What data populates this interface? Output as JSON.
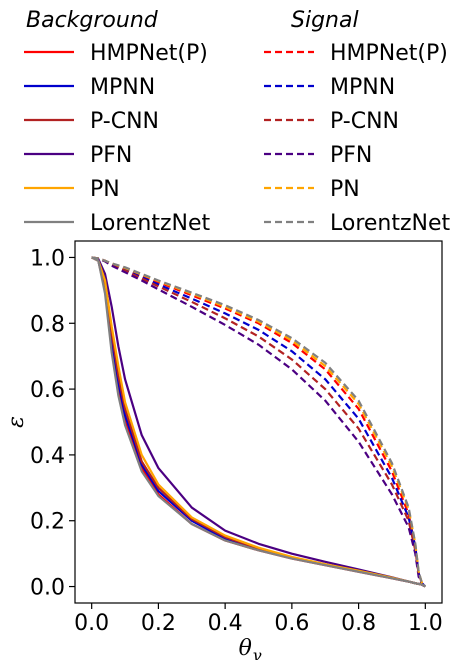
{
  "chart_data": {
    "type": "line",
    "xlabel": "θ",
    "xlabel_sub": "γ",
    "ylabel": "ε",
    "xlim": [
      -0.05,
      1.05
    ],
    "ylim": [
      -0.05,
      1.05
    ],
    "xticks": [
      0.0,
      0.2,
      0.4,
      0.6,
      0.8,
      1.0
    ],
    "yticks": [
      0.0,
      0.2,
      0.4,
      0.6,
      0.8,
      1.0
    ],
    "xtick_labels": [
      "0.0",
      "0.2",
      "0.4",
      "0.6",
      "0.8",
      "1.0"
    ],
    "ytick_labels": [
      "0.0",
      "0.2",
      "0.4",
      "0.6",
      "0.8",
      "1.0"
    ],
    "grid": false,
    "legend_placement": "top, above plot, two columns",
    "legend_groups": [
      {
        "title": "Background",
        "linestyle": "solid"
      },
      {
        "title": "Signal",
        "linestyle": "dashed"
      }
    ],
    "x": [
      0.0,
      0.02,
      0.04,
      0.06,
      0.08,
      0.1,
      0.15,
      0.2,
      0.3,
      0.4,
      0.5,
      0.6,
      0.7,
      0.8,
      0.9,
      0.95,
      0.97,
      0.98,
      0.99,
      1.0
    ],
    "series": [
      {
        "name": "HMPNet(P)",
        "color": "#ff0000",
        "background": [
          1.0,
          0.99,
          0.9,
          0.73,
          0.6,
          0.5,
          0.36,
          0.28,
          0.19,
          0.14,
          0.11,
          0.085,
          0.065,
          0.045,
          0.025,
          0.015,
          0.01,
          0.008,
          0.006,
          0.0
        ],
        "signal": [
          1.0,
          0.997,
          0.99,
          0.98,
          0.973,
          0.965,
          0.945,
          0.925,
          0.885,
          0.845,
          0.8,
          0.74,
          0.66,
          0.54,
          0.35,
          0.22,
          0.12,
          0.04,
          0.01,
          0.0
        ]
      },
      {
        "name": "MPNN",
        "color": "#0000cc",
        "background": [
          1.0,
          0.99,
          0.91,
          0.75,
          0.62,
          0.52,
          0.37,
          0.29,
          0.2,
          0.145,
          0.113,
          0.087,
          0.066,
          0.046,
          0.026,
          0.015,
          0.01,
          0.008,
          0.006,
          0.0
        ],
        "signal": [
          1.0,
          0.997,
          0.99,
          0.98,
          0.971,
          0.962,
          0.94,
          0.918,
          0.875,
          0.83,
          0.78,
          0.715,
          0.63,
          0.51,
          0.33,
          0.21,
          0.12,
          0.04,
          0.01,
          0.0
        ]
      },
      {
        "name": "P-CNN",
        "color": "#b22222",
        "background": [
          1.0,
          0.99,
          0.92,
          0.77,
          0.64,
          0.54,
          0.38,
          0.3,
          0.205,
          0.15,
          0.115,
          0.088,
          0.067,
          0.047,
          0.026,
          0.015,
          0.01,
          0.008,
          0.006,
          0.0
        ],
        "signal": [
          1.0,
          0.997,
          0.99,
          0.978,
          0.969,
          0.96,
          0.936,
          0.912,
          0.865,
          0.815,
          0.76,
          0.69,
          0.6,
          0.48,
          0.31,
          0.2,
          0.11,
          0.04,
          0.01,
          0.0
        ]
      },
      {
        "name": "PFN",
        "color": "#4b0082",
        "background": [
          1.0,
          0.995,
          0.95,
          0.85,
          0.73,
          0.63,
          0.46,
          0.36,
          0.24,
          0.17,
          0.13,
          0.1,
          0.075,
          0.052,
          0.028,
          0.015,
          0.01,
          0.008,
          0.006,
          0.0
        ],
        "signal": [
          1.0,
          0.996,
          0.988,
          0.975,
          0.965,
          0.955,
          0.93,
          0.903,
          0.85,
          0.795,
          0.735,
          0.66,
          0.565,
          0.44,
          0.28,
          0.18,
          0.1,
          0.03,
          0.005,
          0.0
        ]
      },
      {
        "name": "PN",
        "color": "#ffa500",
        "background": [
          1.0,
          0.99,
          0.93,
          0.79,
          0.67,
          0.56,
          0.4,
          0.31,
          0.21,
          0.155,
          0.118,
          0.09,
          0.068,
          0.048,
          0.027,
          0.015,
          0.01,
          0.008,
          0.006,
          0.0
        ],
        "signal": [
          1.0,
          0.997,
          0.99,
          0.982,
          0.975,
          0.968,
          0.948,
          0.928,
          0.89,
          0.85,
          0.805,
          0.748,
          0.67,
          0.555,
          0.365,
          0.235,
          0.13,
          0.045,
          0.01,
          0.0
        ]
      },
      {
        "name": "LorentzNet",
        "color": "#808080",
        "background": [
          1.0,
          0.99,
          0.89,
          0.71,
          0.58,
          0.49,
          0.35,
          0.275,
          0.19,
          0.14,
          0.11,
          0.085,
          0.065,
          0.045,
          0.025,
          0.015,
          0.01,
          0.008,
          0.006,
          0.0
        ],
        "signal": [
          1.0,
          0.997,
          0.99,
          0.982,
          0.976,
          0.97,
          0.95,
          0.93,
          0.893,
          0.855,
          0.81,
          0.755,
          0.68,
          0.565,
          0.375,
          0.24,
          0.13,
          0.045,
          0.01,
          0.0
        ]
      }
    ]
  }
}
